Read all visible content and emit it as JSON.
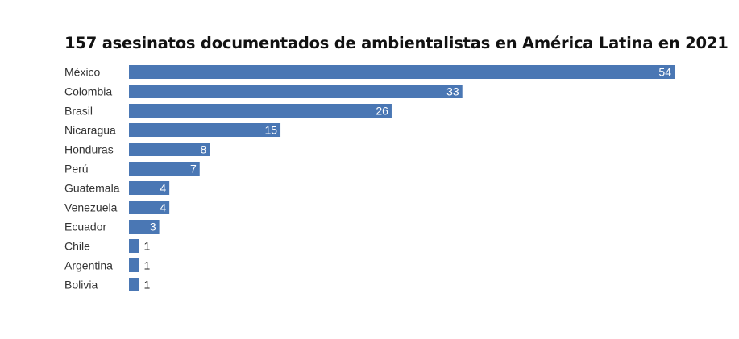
{
  "chart_data": {
    "type": "bar",
    "orientation": "horizontal",
    "title": "157 asesinatos documentados de ambientalistas en América Latina en 2021",
    "categories": [
      "México",
      "Colombia",
      "Brasil",
      "Nicaragua",
      "Honduras",
      "Perú",
      "Guatemala",
      "Venezuela",
      "Ecuador",
      "Chile",
      "Argentina",
      "Bolivia"
    ],
    "values": [
      54,
      33,
      26,
      15,
      8,
      7,
      4,
      4,
      3,
      1,
      1,
      1
    ],
    "xlim": [
      0,
      54
    ],
    "grid": false,
    "legend": "none",
    "bar_color": "#4a77b4",
    "label_inside_color": "#ffffff",
    "label_outside_color": "#222222"
  }
}
